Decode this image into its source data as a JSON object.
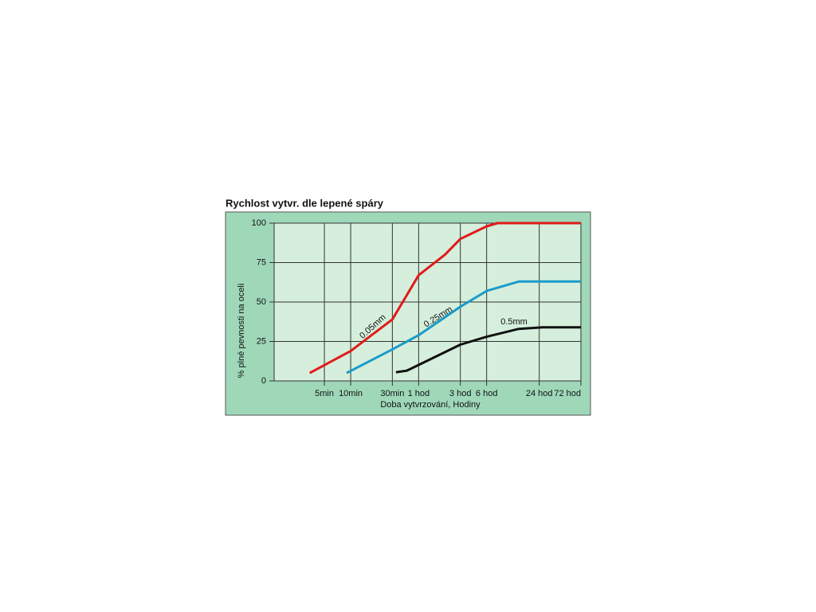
{
  "chart_data": {
    "type": "line",
    "title": "Rychlost vytvr. dle lepené spáry",
    "x_label": "Doba vytvrzování, Hodiny",
    "y_label": "% plné pevnosti na oceli",
    "x_scale": "log",
    "xlim": [
      1.33,
      4320
    ],
    "ylim": [
      0,
      100
    ],
    "xticks": [
      {
        "value": 5,
        "label": "5min"
      },
      {
        "value": 10,
        "label": "10min"
      },
      {
        "value": 30,
        "label": "30min"
      },
      {
        "value": 60,
        "label": "1 hod"
      },
      {
        "value": 180,
        "label": "3 hod"
      },
      {
        "value": 360,
        "label": "6 hod"
      },
      {
        "value": 1440,
        "label": "24 hod"
      },
      {
        "value": 4320,
        "label": "72 hod"
      }
    ],
    "yticks": [
      0,
      25,
      50,
      75,
      100
    ],
    "grid": true,
    "series": [
      {
        "name": "0.05mm",
        "color": "#e01b1b",
        "x": [
          3.4,
          10,
          30,
          60,
          120,
          180,
          360,
          480,
          4320
        ],
        "values": [
          5,
          19,
          39,
          67,
          80,
          90,
          98,
          100,
          100
        ]
      },
      {
        "name": "0.25mm",
        "color": "#1b9bc9",
        "x": [
          9,
          30,
          60,
          180,
          360,
          840,
          4320
        ],
        "values": [
          5,
          20,
          29,
          47,
          57,
          63,
          63
        ]
      },
      {
        "name": "0.5mm",
        "color": "#111111",
        "x": [
          33,
          44,
          180,
          360,
          840,
          1575,
          4320
        ],
        "values": [
          5.5,
          6.5,
          23,
          28,
          33,
          34,
          34
        ]
      }
    ]
  }
}
